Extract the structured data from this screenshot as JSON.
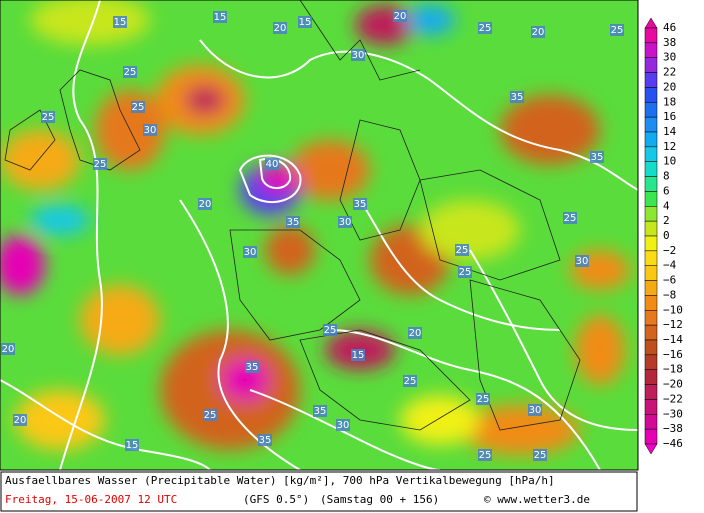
{
  "legend": [
    {
      "label": "46",
      "color": "#e60aa0"
    },
    {
      "label": "38",
      "color": "#c814c8"
    },
    {
      "label": "30",
      "color": "#9628dc"
    },
    {
      "label": "22",
      "color": "#5a3cf0"
    },
    {
      "label": "20",
      "color": "#2850f0"
    },
    {
      "label": "18",
      "color": "#1e6ef0"
    },
    {
      "label": "16",
      "color": "#1e8cf0"
    },
    {
      "label": "14",
      "color": "#14aaf0"
    },
    {
      "label": "12",
      "color": "#14c8e6"
    },
    {
      "label": "10",
      "color": "#14dcc8"
    },
    {
      "label": "8",
      "color": "#28e68c"
    },
    {
      "label": "6",
      "color": "#3ce650"
    },
    {
      "label": "4",
      "color": "#8ce632"
    },
    {
      "label": "2",
      "color": "#c8e61e"
    },
    {
      "label": "0",
      "color": "#f0f014"
    },
    {
      "label": "−2",
      "color": "#fadc14"
    },
    {
      "label": "−4",
      "color": "#fac814"
    },
    {
      "label": "−6",
      "color": "#f5aa14"
    },
    {
      "label": "−8",
      "color": "#f08c14"
    },
    {
      "label": "−10",
      "color": "#e6781e"
    },
    {
      "label": "−12",
      "color": "#d2641e"
    },
    {
      "label": "−14",
      "color": "#be501e"
    },
    {
      "label": "−16",
      "color": "#b43c28"
    },
    {
      "label": "−18",
      "color": "#b4283c"
    },
    {
      "label": "−20",
      "color": "#be1e5a"
    },
    {
      "label": "−22",
      "color": "#c81478"
    },
    {
      "label": "−30",
      "color": "#d20a96"
    },
    {
      "label": "−38",
      "color": "#e600b4"
    },
    {
      "label": "−46",
      "color": "#f000c8"
    }
  ],
  "contour_labels": [
    "15",
    "20",
    "15",
    "20",
    "25",
    "20",
    "30",
    "25",
    "25",
    "35",
    "25",
    "40",
    "35",
    "20",
    "30",
    "25",
    "30",
    "35",
    "25",
    "25",
    "30",
    "25",
    "20",
    "35",
    "15",
    "25",
    "35",
    "30",
    "25",
    "20",
    "15",
    "25",
    "35",
    "30",
    "25",
    "25",
    "25",
    "20",
    "15",
    "30",
    "35",
    "25"
  ],
  "footer": {
    "line1": "Ausfaellbares Wasser (Precipitable Water) [kg/m²], 700 hPa Vertikalbewegung [hPa/h]",
    "date": "Freitag, 15-06-2007  12 UTC",
    "model": "(GFS 0.5°)",
    "run": "(Samstag 00 + 156)",
    "credit": "© www.wetter3.de"
  }
}
